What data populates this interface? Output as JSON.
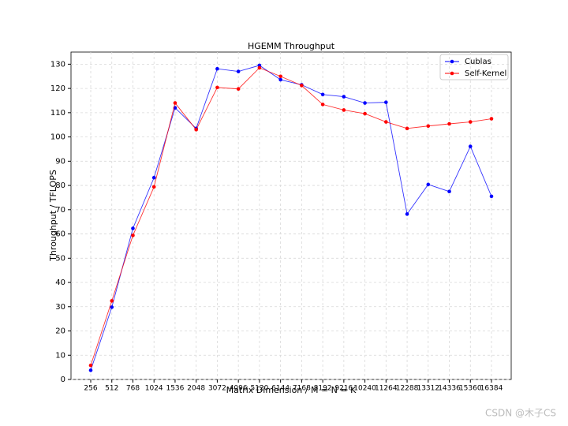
{
  "chart_data": {
    "type": "line",
    "title": "HGEMM Throughput",
    "x_label": "Matrix Dimension / M = N = K",
    "y_label": "Throughput / TFLOPS",
    "categories": [
      "256",
      "512",
      "768",
      "1024",
      "1536",
      "2048",
      "3072",
      "4096",
      "5120",
      "6144",
      "7168",
      "8192",
      "9216",
      "10240",
      "11264",
      "12288",
      "13312",
      "14336",
      "15360",
      "16384"
    ],
    "series": [
      {
        "name": "Cublas",
        "color": "#0000ff",
        "values": [
          3.8,
          29.8,
          62.3,
          83.2,
          112,
          103.5,
          128.1,
          127,
          129.5,
          123.6,
          121.5,
          117.5,
          116.6,
          114,
          114.3,
          68.2,
          80.4,
          77.5,
          96.1,
          75.5
        ]
      },
      {
        "name": "Self-Kernel",
        "color": "#ff0000",
        "values": [
          5.8,
          32.4,
          59.4,
          79.4,
          114,
          103,
          120.4,
          119.8,
          128.5,
          125,
          121.2,
          113.4,
          111.1,
          109.6,
          106.2,
          103.5,
          104.5,
          105.4,
          106.2,
          107.5
        ]
      }
    ],
    "ylim": [
      0,
      135
    ],
    "yticks": [
      0,
      10,
      20,
      30,
      40,
      50,
      60,
      70,
      80,
      90,
      100,
      110,
      120,
      130
    ],
    "grid": true,
    "legend": "upper-right",
    "watermark": "CSDN @木子CS"
  }
}
